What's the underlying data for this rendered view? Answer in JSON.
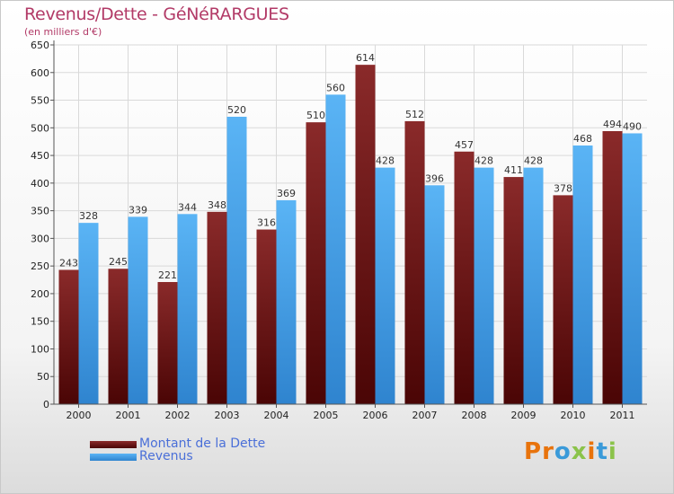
{
  "chart_data": {
    "type": "bar",
    "title": "Revenus/Dette - GéNéRARGUES",
    "subtitle": "(en milliers d'€)",
    "categories": [
      "2000",
      "2001",
      "2002",
      "2003",
      "2004",
      "2005",
      "2006",
      "2007",
      "2008",
      "2009",
      "2010",
      "2011"
    ],
    "series": [
      {
        "name": "Montant de la Dette",
        "values": [
          243,
          245,
          221,
          348,
          316,
          510,
          614,
          512,
          457,
          411,
          378,
          494
        ],
        "color": "#7a1a1a"
      },
      {
        "name": "Revenus",
        "values": [
          328,
          339,
          344,
          520,
          369,
          560,
          428,
          396,
          428,
          428,
          468,
          490
        ],
        "color": "#4da6ee"
      }
    ],
    "ylim": [
      0,
      650
    ],
    "yticks": [
      0,
      50,
      100,
      150,
      200,
      250,
      300,
      350,
      400,
      450,
      500,
      550,
      600,
      650
    ],
    "grid": true,
    "legend_position": "bottom-left"
  },
  "logo": {
    "text": "Proxiti",
    "colors": [
      "#e8730c",
      "#e8730c",
      "#3a9ad9",
      "#8bc34a",
      "#e8730c",
      "#3a9ad9",
      "#8bc34a"
    ]
  }
}
